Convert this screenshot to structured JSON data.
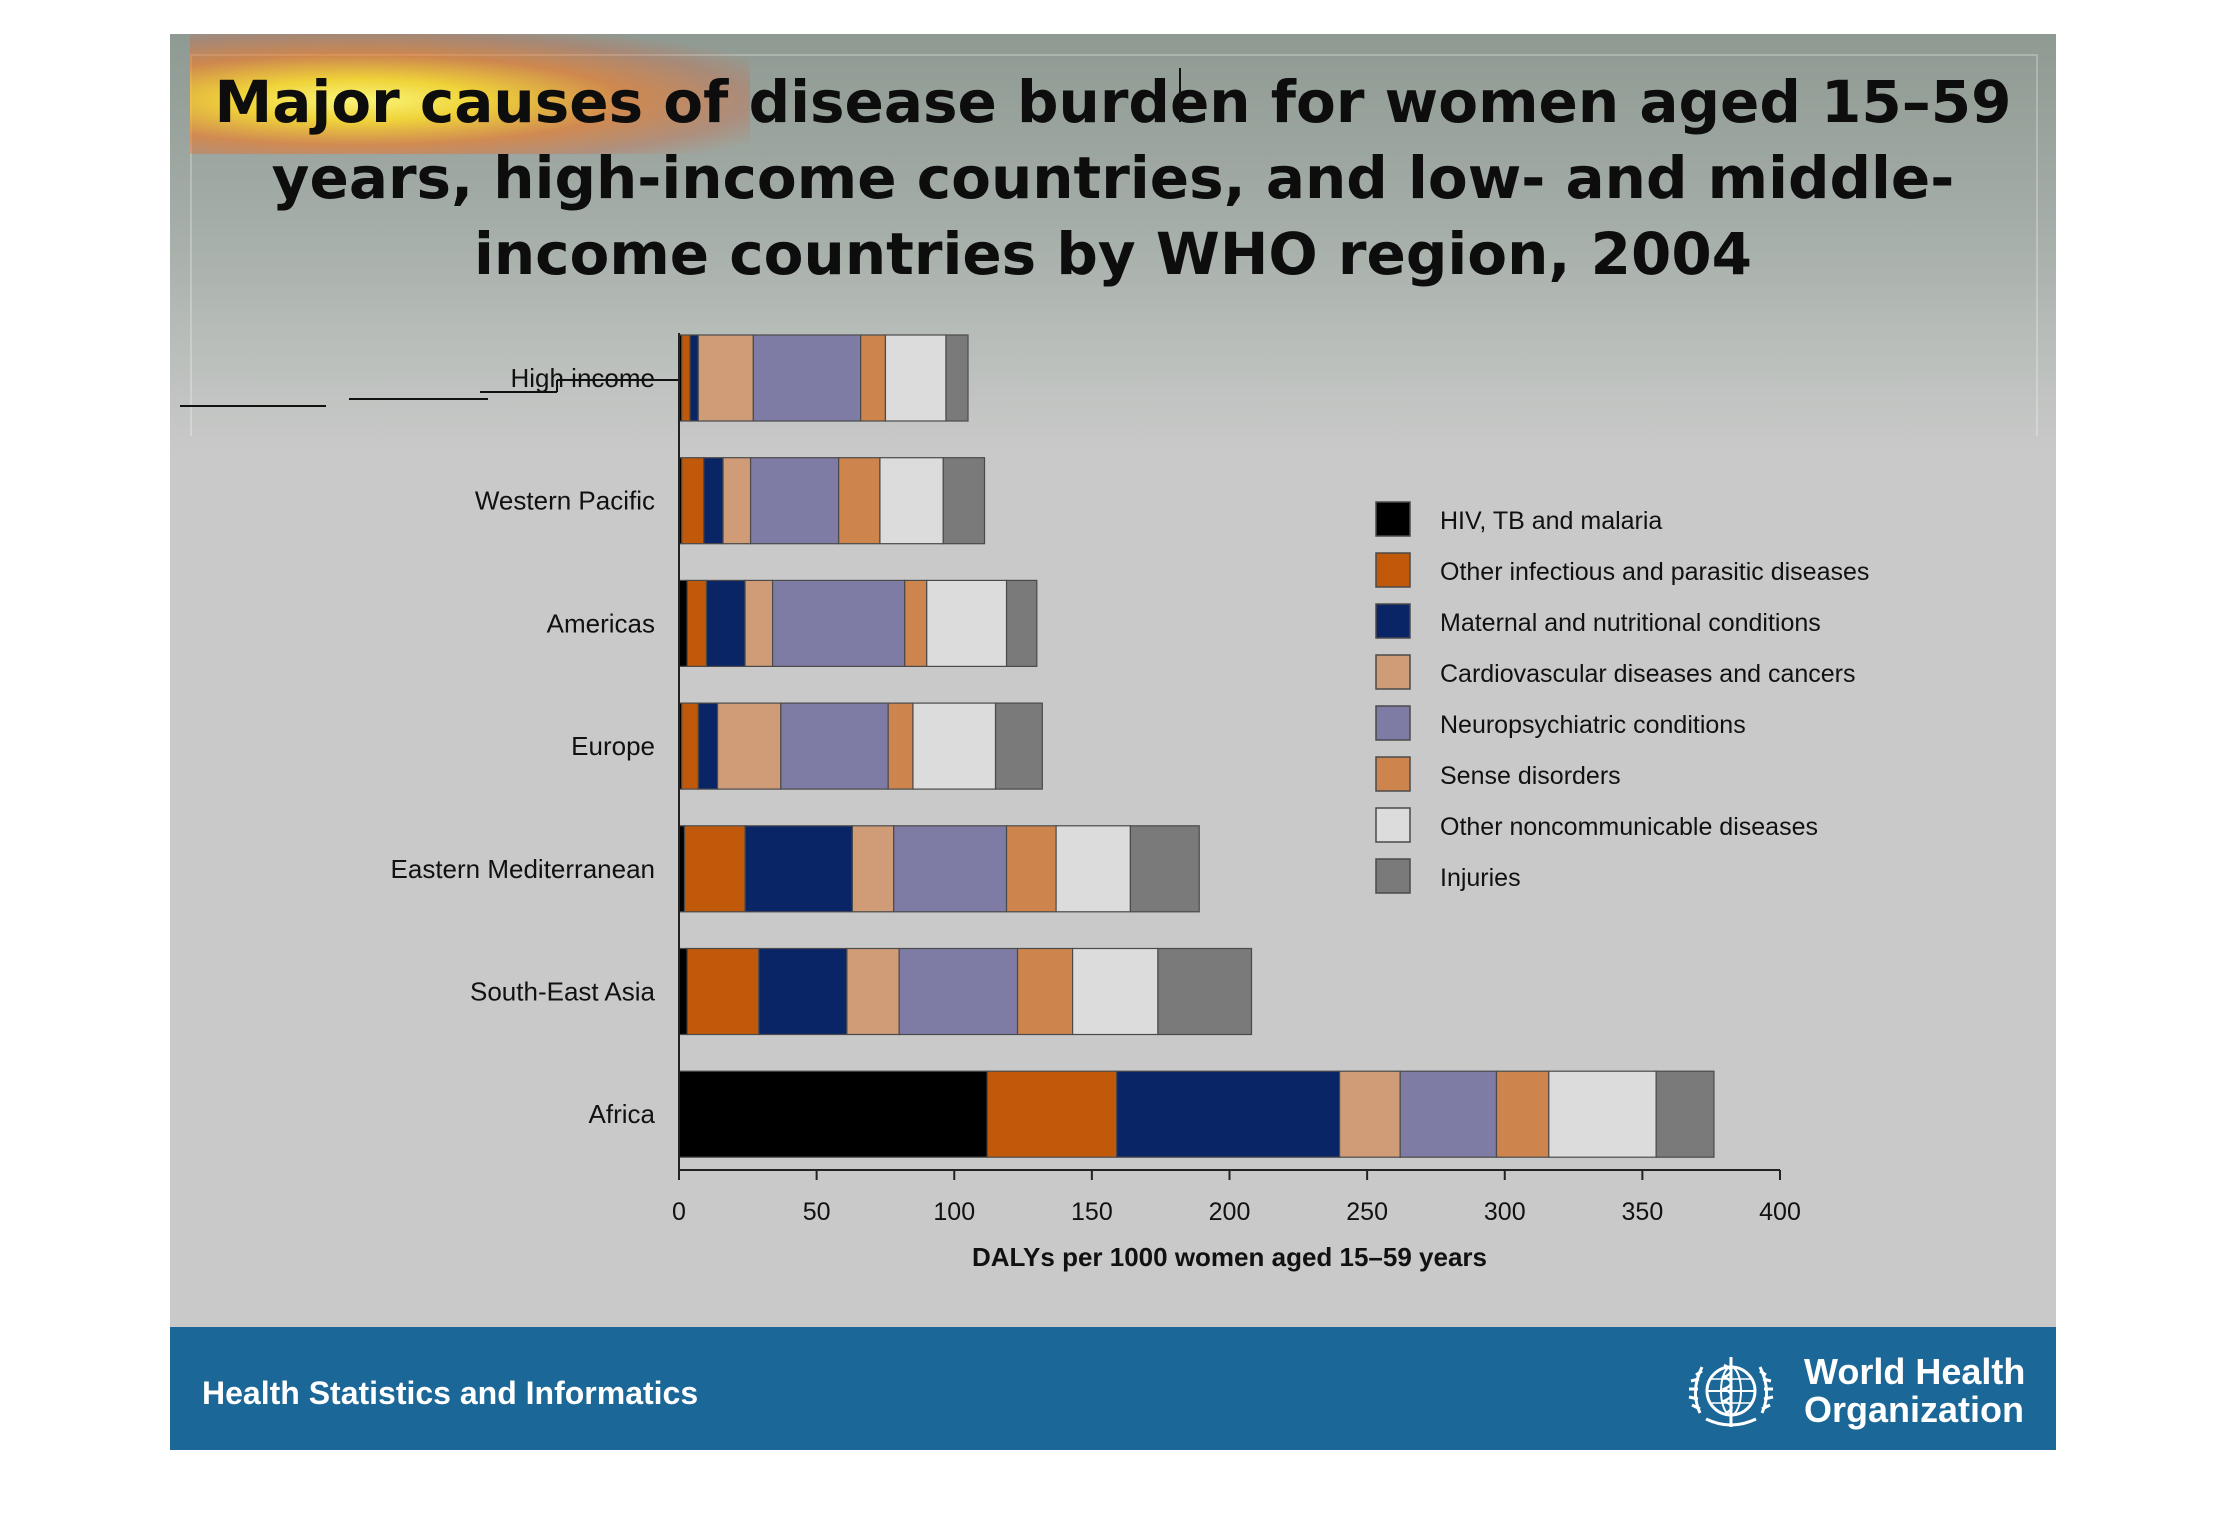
{
  "slide": {
    "title": "Major causes of disease burden for women aged 15–59 years, high-income countries, and low- and middle-income countries by WHO region, 2004",
    "footer_text": "Health Statistics and Informatics",
    "org_name_line1": "World Health",
    "org_name_line2": "Organization",
    "colors": {
      "footer": "#1b6797",
      "slide_bg": "#c9c9c9"
    }
  },
  "chart_data": {
    "type": "bar",
    "orientation": "horizontal",
    "stacked": true,
    "xlabel": "DALYs per 1000 women aged 15–59 years",
    "xlim": [
      0,
      400
    ],
    "xticks": [
      0,
      50,
      100,
      150,
      200,
      250,
      300,
      350,
      400
    ],
    "categories": [
      "High income",
      "Western Pacific",
      "Americas",
      "Europe",
      "Eastern Mediterranean",
      "South-East Asia",
      "Africa"
    ],
    "legend_position": "right",
    "series": [
      {
        "name": "HIV, TB and malaria",
        "color": "#000000",
        "values": [
          1,
          1,
          3,
          1,
          2,
          3,
          112
        ]
      },
      {
        "name": "Other infectious and parasitic diseases",
        "color": "#c05a0a",
        "values": [
          3,
          8,
          7,
          6,
          22,
          26,
          47
        ]
      },
      {
        "name": "Maternal and nutritional conditions",
        "color": "#0a2566",
        "values": [
          3,
          7,
          14,
          7,
          39,
          32,
          81
        ]
      },
      {
        "name": "Cardiovascular diseases and cancers",
        "color": "#d09c78",
        "values": [
          20,
          10,
          10,
          23,
          15,
          19,
          22
        ]
      },
      {
        "name": "Neuropsychiatric conditions",
        "color": "#7e7ba5",
        "values": [
          39,
          32,
          48,
          39,
          41,
          43,
          35
        ]
      },
      {
        "name": "Sense disorders",
        "color": "#cd854d",
        "values": [
          9,
          15,
          8,
          9,
          18,
          20,
          19
        ]
      },
      {
        "name": "Other noncommunicable diseases",
        "color": "#dcdcdc",
        "values": [
          22,
          23,
          29,
          30,
          27,
          31,
          39
        ]
      },
      {
        "name": "Injuries",
        "color": "#7a7a7a",
        "values": [
          8,
          15,
          11,
          17,
          25,
          34,
          21
        ]
      }
    ]
  }
}
